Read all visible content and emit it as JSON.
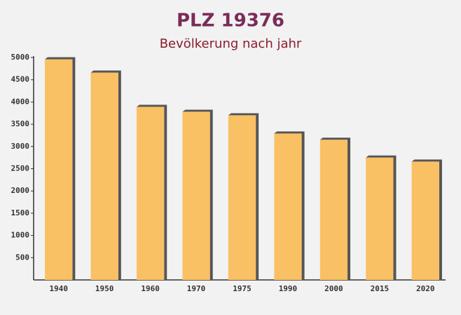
{
  "chart_data": {
    "type": "bar",
    "title": "PLZ 19376",
    "subtitle": "Bevölkerung nach jahr",
    "categories": [
      "1940",
      "1950",
      "1960",
      "1970",
      "1975",
      "1990",
      "2000",
      "2015",
      "2020"
    ],
    "values": [
      4960,
      4660,
      3890,
      3780,
      3700,
      3290,
      3150,
      2750,
      2660
    ],
    "color": "#f9c064",
    "ylim": [
      0,
      5000
    ],
    "yticks": [
      500,
      1000,
      1500,
      2000,
      2500,
      3000,
      3500,
      4000,
      4500,
      5000
    ]
  }
}
